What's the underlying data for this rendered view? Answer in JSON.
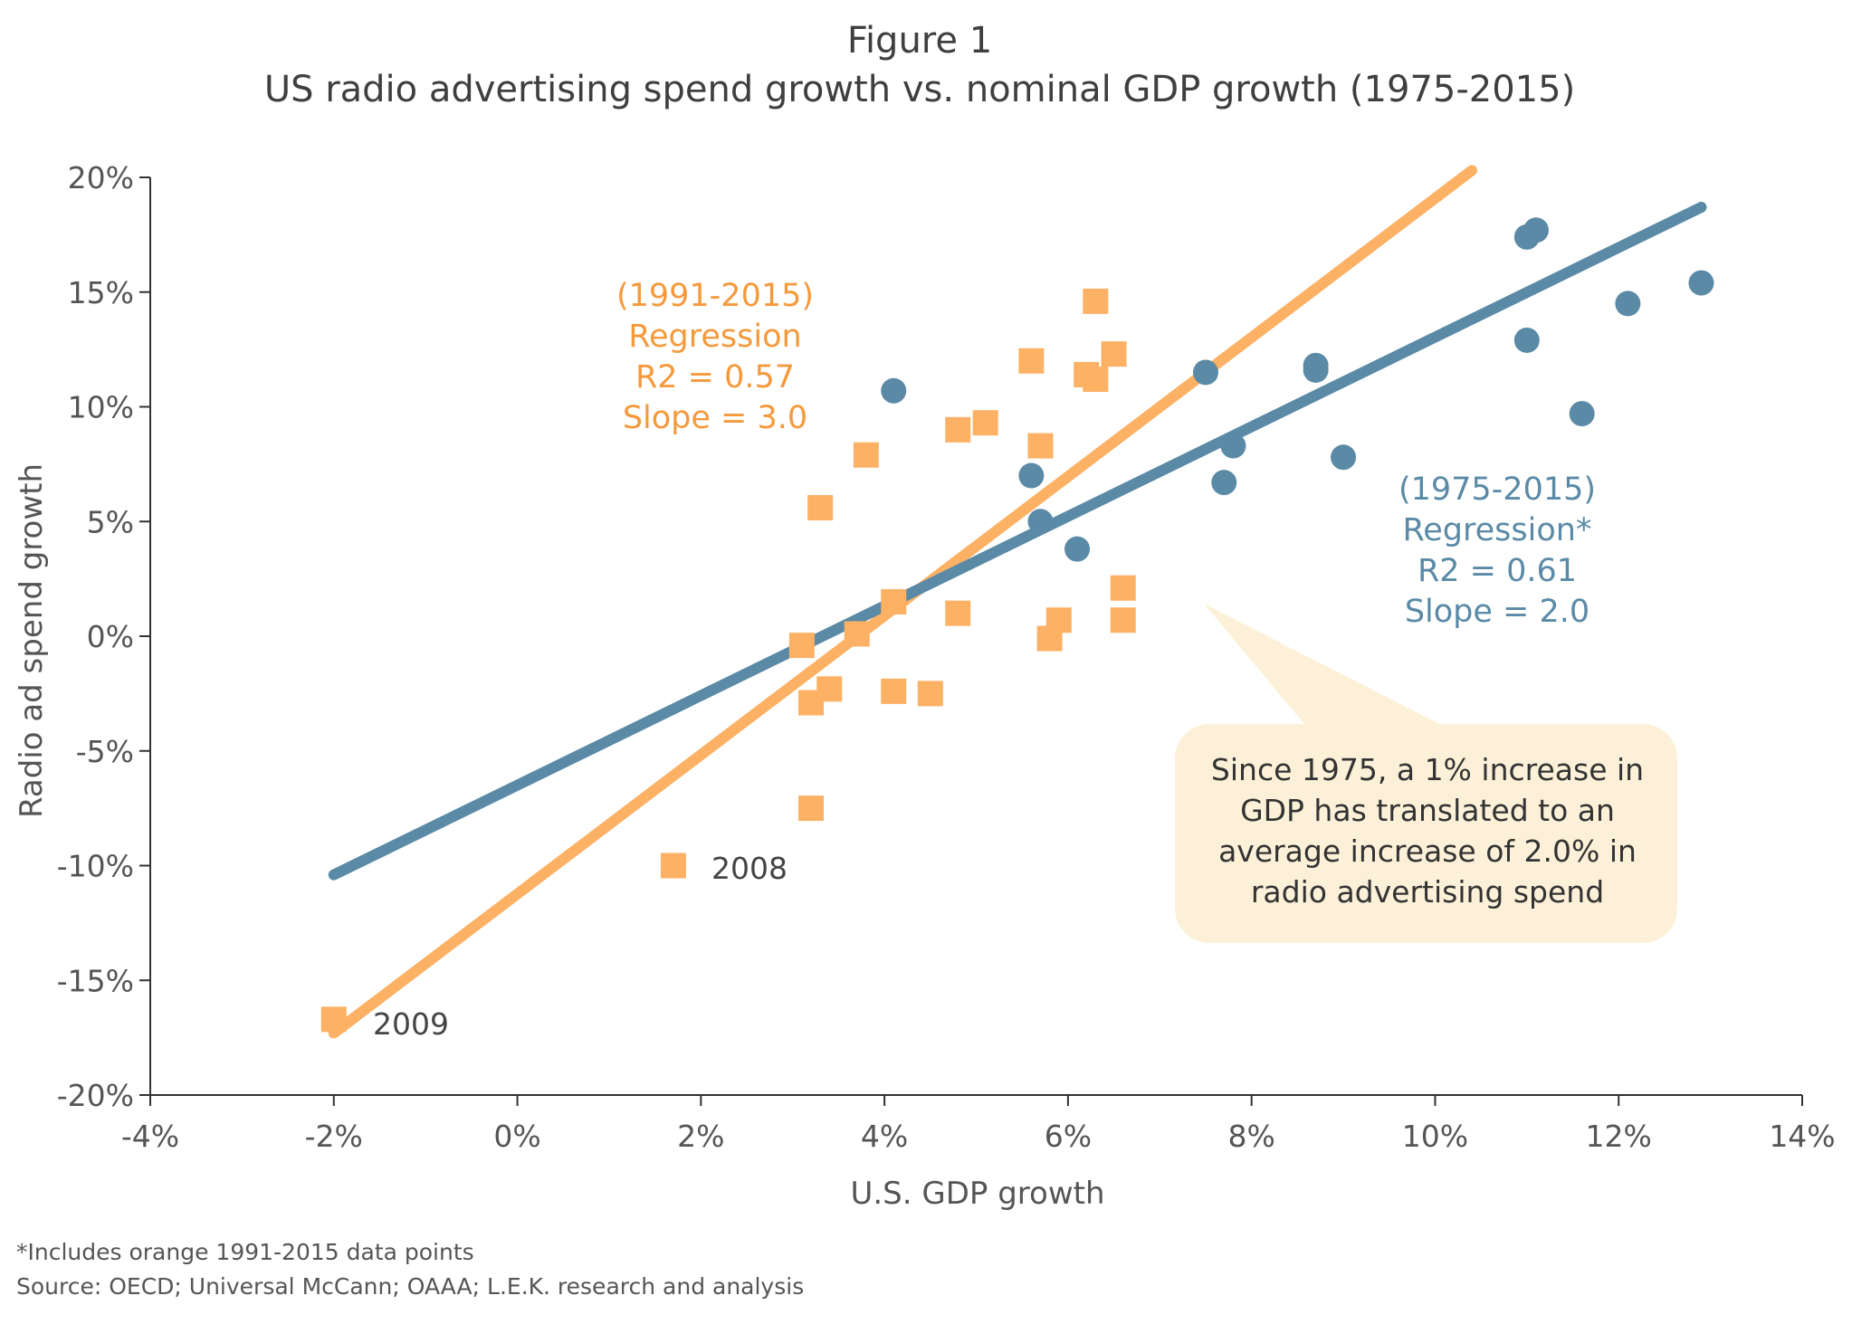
{
  "figure_label": "Figure 1",
  "title": "US radio advertising spend growth vs. nominal GDP growth (1975-2015)",
  "colors": {
    "orange": "#FDB164",
    "orange_text": "#F59A3C",
    "blue": "#5A8AA6",
    "callout_fill": "#FCF1D8",
    "axis": "#333333"
  },
  "chart_data": {
    "type": "scatter",
    "title": "US radio advertising spend growth vs. nominal GDP growth (1975-2015)",
    "xlabel": "U.S. GDP growth",
    "ylabel": "Radio ad spend growth",
    "xlim": [
      -4,
      14
    ],
    "ylim": [
      -20,
      20
    ],
    "x_ticks": [
      -4,
      -2,
      0,
      2,
      4,
      6,
      8,
      10,
      12,
      14
    ],
    "y_ticks": [
      20,
      15,
      10,
      5,
      0,
      -5,
      -10,
      -15,
      -20
    ],
    "x_tick_labels": [
      "-4%",
      "-2%",
      "0%",
      "2%",
      "4%",
      "6%",
      "8%",
      "10%",
      "12%",
      "14%"
    ],
    "y_tick_labels": [
      "20%",
      "15%",
      "10%",
      "5%",
      "0%",
      "-5%",
      "-10%",
      "-15%",
      "-20%"
    ],
    "grid": false,
    "series": [
      {
        "marker": "square",
        "color": "#FDB164",
        "points": [
          [
            -2.0,
            -16.7
          ],
          [
            1.7,
            -10.0
          ],
          [
            3.2,
            -7.5
          ],
          [
            3.2,
            -2.9
          ],
          [
            3.4,
            -2.3
          ],
          [
            3.1,
            -0.4
          ],
          [
            3.7,
            0.1
          ],
          [
            3.3,
            5.6
          ],
          [
            3.8,
            7.9
          ],
          [
            4.1,
            -2.4
          ],
          [
            4.5,
            -2.5
          ],
          [
            4.1,
            1.5
          ],
          [
            4.8,
            1.0
          ],
          [
            4.8,
            9.0
          ],
          [
            5.1,
            9.3
          ],
          [
            5.6,
            12.0
          ],
          [
            5.7,
            8.3
          ],
          [
            5.8,
            -0.1
          ],
          [
            5.9,
            0.7
          ],
          [
            6.2,
            11.4
          ],
          [
            6.3,
            11.2
          ],
          [
            6.3,
            14.6
          ],
          [
            6.5,
            12.3
          ],
          [
            6.6,
            2.1
          ],
          [
            6.6,
            0.7
          ]
        ]
      },
      {
        "marker": "circle",
        "color": "#5A8AA6",
        "points": [
          [
            4.1,
            10.7
          ],
          [
            5.6,
            7.0
          ],
          [
            5.7,
            5.0
          ],
          [
            6.1,
            3.8
          ],
          [
            7.5,
            11.5
          ],
          [
            7.7,
            6.7
          ],
          [
            7.8,
            8.3
          ],
          [
            8.7,
            11.8
          ],
          [
            8.7,
            11.6
          ],
          [
            9.0,
            7.8
          ],
          [
            11.0,
            17.4
          ],
          [
            11.1,
            17.7
          ],
          [
            11.0,
            12.9
          ],
          [
            11.6,
            9.7
          ],
          [
            12.1,
            14.5
          ],
          [
            12.9,
            15.4
          ]
        ]
      }
    ],
    "regression_lines": [
      {
        "color": "#FDB164",
        "from": [
          -2.0,
          -17.3
        ],
        "to": [
          10.4,
          20.3
        ]
      },
      {
        "color": "#5A8AA6",
        "from": [
          -2.0,
          -10.4
        ],
        "to": [
          12.9,
          18.7
        ]
      }
    ],
    "annotations": {
      "orange_regression": [
        "(1991-2015)",
        "Regression",
        "R2 = 0.57",
        "Slope = 3.0"
      ],
      "blue_regression": [
        "(1975-2015)",
        "Regression*",
        "R2 = 0.61",
        "Slope = 2.0"
      ],
      "label_2008": "2008",
      "label_2009": "2009",
      "callout": [
        "Since 1975, a 1% increase in",
        "GDP has translated to an",
        "average increase of 2.0% in",
        "radio advertising spend"
      ]
    }
  },
  "footnotes": {
    "note": "*Includes orange 1991-2015 data points",
    "source": "Source: OECD; Universal McCann; OAAA; L.E.K. research and analysis"
  }
}
